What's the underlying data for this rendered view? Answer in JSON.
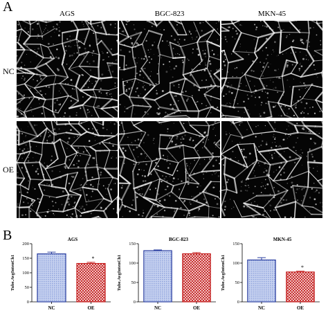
{
  "panel_a": {
    "letter": "A",
    "columns": [
      "AGS",
      "BGC-823",
      "MKN-45"
    ],
    "rows": [
      "NC",
      "OE"
    ]
  },
  "panel_b": {
    "letter": "B"
  },
  "colors": {
    "nc_fill": "#8fa3dc",
    "nc_edge": "#2b3fa0",
    "oe_fill": "#ef7f7f",
    "oe_edge": "#c41e1e",
    "micro_bg": "#050505",
    "micro_fg": "#e8e8e8"
  },
  "chart_data": [
    {
      "type": "bar",
      "title": "AGS",
      "ylabel": "Tube.AvgIntenCh1",
      "categories": [
        "NC",
        "OE"
      ],
      "values": [
        165,
        132
      ],
      "errors": [
        6,
        4
      ],
      "significance": [
        "",
        "*"
      ],
      "ylim": [
        0,
        200
      ],
      "yticks": [
        0,
        50,
        100,
        150,
        200
      ]
    },
    {
      "type": "bar",
      "title": "BGC-823",
      "ylabel": "Tube.AvgIntenCh1",
      "categories": [
        "NC",
        "OE"
      ],
      "values": [
        132,
        124
      ],
      "errors": [
        2,
        3
      ],
      "significance": [
        "",
        ""
      ],
      "ylim": [
        0,
        150
      ],
      "yticks": [
        0,
        50,
        100,
        150
      ]
    },
    {
      "type": "bar",
      "title": "MKN-45",
      "ylabel": "Tube.AvgIntenCh1",
      "categories": [
        "NC",
        "OE"
      ],
      "values": [
        108,
        77
      ],
      "errors": [
        6,
        2
      ],
      "significance": [
        "",
        "*"
      ],
      "ylim": [
        0,
        150
      ],
      "yticks": [
        0,
        50,
        100,
        150
      ]
    }
  ]
}
